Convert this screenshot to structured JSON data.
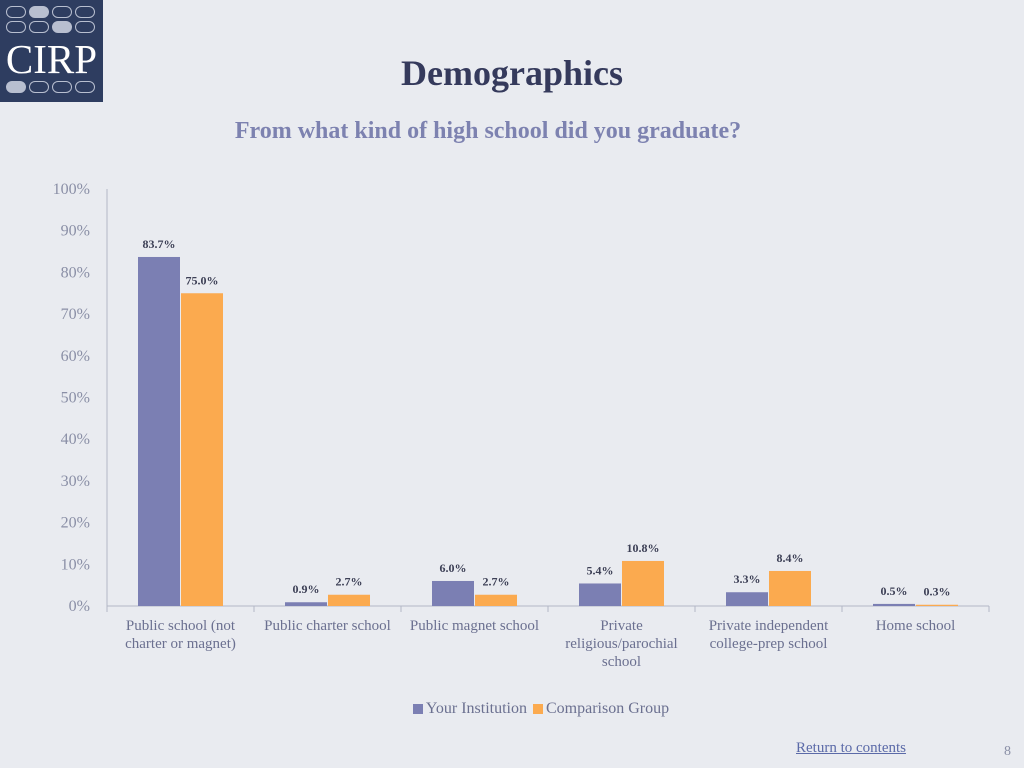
{
  "logo": {
    "text": "CIRP"
  },
  "colors": {
    "series1": "#7b7fb3",
    "series2": "#fbaa4f",
    "axis": "#b3b7c6",
    "text": "#6b7090"
  },
  "chart_data": {
    "type": "bar",
    "title": "Demographics",
    "subtitle": "From what kind of high school did you graduate?",
    "categories": [
      [
        "Public school (not",
        "charter or magnet)"
      ],
      [
        "Public charter school"
      ],
      [
        "Public magnet school"
      ],
      [
        "Private",
        "religious/parochial",
        "school"
      ],
      [
        "Private independent",
        "college-prep school"
      ],
      [
        "Home school"
      ]
    ],
    "series": [
      {
        "name": "Your Institution",
        "values": [
          83.7,
          0.9,
          6.0,
          5.4,
          3.3,
          0.5
        ],
        "labels": [
          "83.7%",
          "0.9%",
          "6.0%",
          "5.4%",
          "3.3%",
          "0.5%"
        ]
      },
      {
        "name": "Comparison Group",
        "values": [
          75.0,
          2.7,
          2.7,
          10.8,
          8.4,
          0.3
        ],
        "labels": [
          "75.0%",
          "2.7%",
          "2.7%",
          "10.8%",
          "8.4%",
          "0.3%"
        ]
      }
    ],
    "yticks": [
      "0%",
      "10%",
      "20%",
      "30%",
      "40%",
      "50%",
      "60%",
      "70%",
      "80%",
      "90%",
      "100%"
    ],
    "ylim": [
      0,
      100
    ],
    "grid": false,
    "legend_position": "bottom"
  },
  "footer": {
    "return_link": "Return to contents",
    "page_number": "8"
  }
}
